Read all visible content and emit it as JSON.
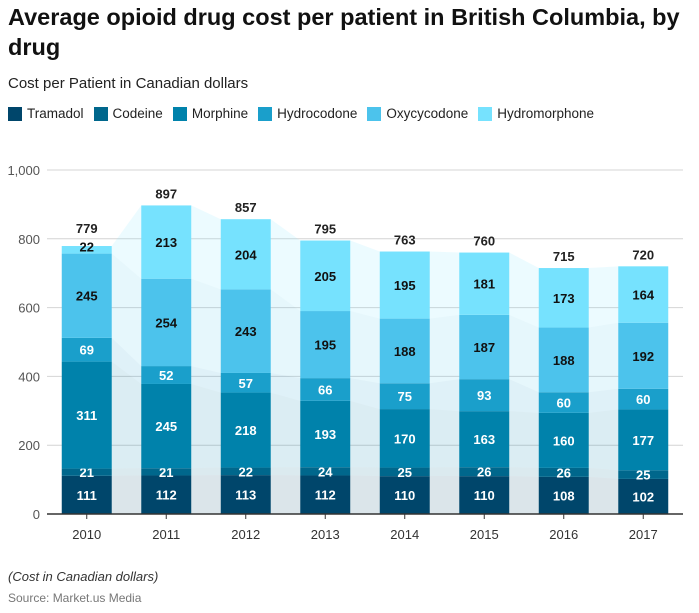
{
  "chart_data": {
    "type": "bar",
    "stacked": true,
    "title": "Average opioid drug cost per patient in British Columbia, by drug",
    "subtitle": "Cost per Patient in Canadian dollars",
    "categories": [
      "2010",
      "2011",
      "2012",
      "2013",
      "2014",
      "2015",
      "2016",
      "2017"
    ],
    "series": [
      {
        "name": "Tramadol",
        "color": "#00466b",
        "values": [
          111,
          112,
          113,
          112,
          110,
          110,
          108,
          102
        ]
      },
      {
        "name": "Codeine",
        "color": "#00678c",
        "values": [
          21,
          21,
          22,
          24,
          25,
          26,
          26,
          25
        ]
      },
      {
        "name": "Morphine",
        "color": "#0082ab",
        "values": [
          311,
          245,
          218,
          193,
          170,
          163,
          160,
          177
        ]
      },
      {
        "name": "Hydrocodone",
        "color": "#1a9fcb",
        "values": [
          69,
          52,
          57,
          66,
          75,
          93,
          60,
          60
        ]
      },
      {
        "name": "Oxycycodone",
        "color": "#4cc3ec",
        "values": [
          245,
          254,
          243,
          195,
          188,
          187,
          188,
          192
        ]
      },
      {
        "name": "Hydromorphone",
        "color": "#76e2fe",
        "values": [
          22,
          213,
          204,
          205,
          195,
          181,
          173,
          164
        ]
      }
    ],
    "totals": [
      779,
      897,
      857,
      795,
      763,
      760,
      715,
      720
    ],
    "ylim": [
      0,
      1000
    ],
    "yticks": [
      "0",
      "200",
      "400",
      "600",
      "800",
      "1,000"
    ],
    "grid": true,
    "legend": "top-left"
  },
  "footer": {
    "note": "(Cost in Canadian dollars)",
    "source": "Source: Market.us Media"
  }
}
